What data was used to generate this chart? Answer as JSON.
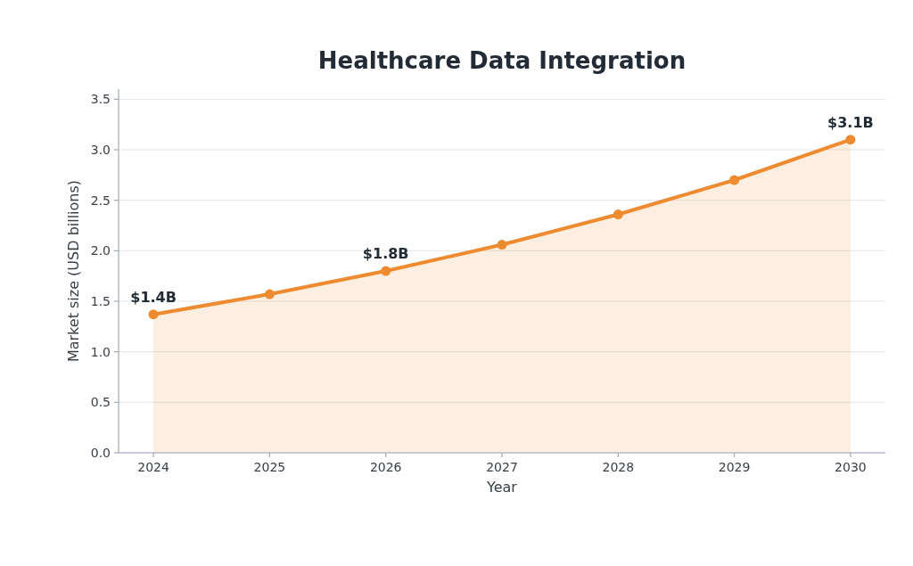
{
  "chart_data": {
    "type": "area",
    "title": "Healthcare Data Integration",
    "xlabel": "Year",
    "ylabel": "Market size (USD billions)",
    "x": [
      2024,
      2025,
      2026,
      2027,
      2028,
      2029,
      2030
    ],
    "values": [
      1.37,
      1.57,
      1.8,
      2.06,
      2.36,
      2.7,
      3.1
    ],
    "value_labels": [
      "$1.4B",
      null,
      "$1.8B",
      null,
      null,
      null,
      "$3.1B"
    ],
    "color": "#ee8a2f",
    "xlim": [
      2023.7,
      2030.3
    ],
    "xticks": [
      2024,
      2025,
      2026,
      2027,
      2028,
      2029,
      2030
    ],
    "ylim": [
      0,
      3.6
    ],
    "yticks": [
      {
        "value": 0,
        "label": "0.0"
      },
      {
        "value": 0.5,
        "label": "0.5"
      },
      {
        "value": 1,
        "label": "1.0"
      },
      {
        "value": 1.5,
        "label": "1.5"
      },
      {
        "value": 2,
        "label": "2.0"
      },
      {
        "value": 2.5,
        "label": "2.5"
      },
      {
        "value": 3,
        "label": "3.0"
      },
      {
        "value": 3.5,
        "label": "3.5"
      }
    ],
    "grid": "y",
    "marker": "circle"
  }
}
